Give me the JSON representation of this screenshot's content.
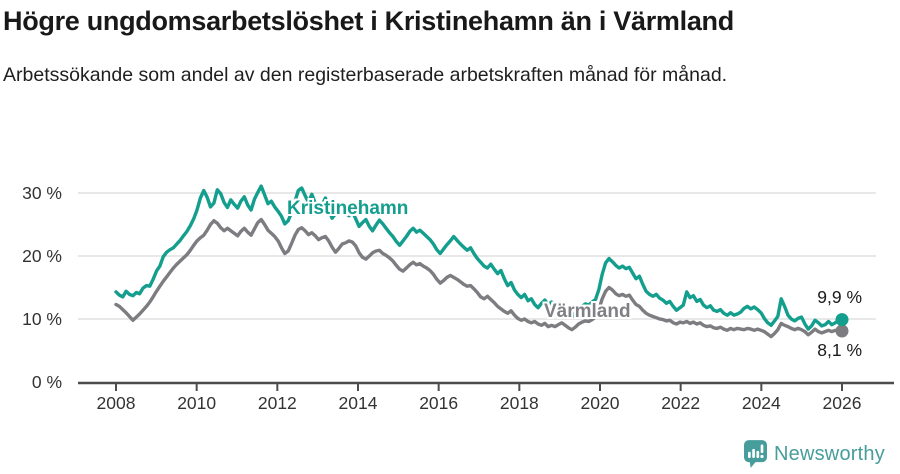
{
  "header": {
    "title": "Högre ungdomsarbetslöshet i Kristinehamn än i Värmland",
    "subtitle": "Arbetssökande som andel av den registerbaserade arbetskraften månad för månad."
  },
  "chart_data": {
    "type": "line",
    "title": "Högre ungdomsarbetslöshet i Kristinehamn än i Värmland",
    "xlabel": "",
    "ylabel": "",
    "x_range": [
      2008,
      2026
    ],
    "ylim": [
      0,
      33
    ],
    "grid": "horizontal",
    "legend_position": "inline-labels",
    "x_tick_years": [
      2008,
      2010,
      2012,
      2014,
      2016,
      2018,
      2020,
      2022,
      2024,
      2026
    ],
    "y_ticks": [
      {
        "value": 0,
        "label": "0 %"
      },
      {
        "value": 10,
        "label": "10 %"
      },
      {
        "value": 20,
        "label": "20 %"
      },
      {
        "value": 30,
        "label": "30 %"
      }
    ],
    "sampling": "monthly 2008-01 to 2025-12",
    "series": [
      {
        "name": "Kristinehamn",
        "color": "#149e8d",
        "end_label": "9,9 %",
        "end_value": 9.9,
        "values": [
          14.3,
          13.8,
          13.5,
          14.4,
          13.9,
          13.7,
          14.2,
          14.0,
          14.9,
          15.3,
          15.2,
          16.3,
          17.6,
          18.4,
          19.9,
          20.6,
          21.0,
          21.3,
          21.9,
          22.5,
          23.2,
          23.9,
          24.8,
          25.9,
          27.3,
          29.2,
          30.4,
          29.3,
          27.8,
          28.4,
          30.5,
          29.9,
          28.5,
          27.7,
          28.9,
          28.2,
          27.6,
          28.7,
          29.4,
          28.1,
          27.3,
          29.0,
          30.1,
          31.1,
          29.7,
          28.3,
          28.7,
          27.8,
          27.1,
          26.3,
          25.1,
          25.6,
          26.9,
          28.7,
          30.4,
          30.8,
          29.6,
          28.5,
          29.8,
          28.4,
          27.0,
          28.1,
          29.2,
          27.4,
          26.0,
          26.7,
          28.1,
          27.6,
          26.8,
          26.4,
          27.1,
          25.9,
          24.7,
          25.3,
          25.8,
          24.7,
          24.0,
          24.9,
          25.7,
          25.1,
          24.4,
          23.7,
          23.1,
          22.3,
          21.7,
          22.4,
          23.1,
          23.9,
          24.4,
          23.8,
          24.1,
          23.6,
          23.1,
          22.6,
          21.9,
          21.0,
          20.4,
          21.1,
          21.8,
          22.4,
          23.1,
          22.5,
          21.9,
          21.4,
          20.9,
          21.3,
          20.4,
          19.6,
          19.0,
          18.4,
          18.1,
          18.7,
          17.9,
          17.2,
          17.7,
          16.4,
          15.3,
          15.8,
          14.6,
          13.9,
          13.4,
          13.9,
          12.9,
          13.2,
          12.3,
          11.8,
          12.5,
          13.0,
          12.3,
          12.7,
          12.0,
          12.4,
          12.5,
          11.9,
          11.1,
          10.3,
          11.0,
          11.7,
          12.0,
          12.4,
          12.2,
          12.7,
          13.1,
          14.7,
          17.1,
          18.9,
          19.6,
          19.1,
          18.5,
          18.1,
          18.4,
          18.0,
          18.2,
          17.3,
          16.4,
          16.8,
          15.5,
          14.4,
          13.9,
          13.6,
          13.9,
          13.3,
          13.0,
          12.5,
          12.8,
          12.0,
          11.4,
          11.8,
          12.2,
          14.3,
          13.4,
          13.7,
          12.8,
          13.1,
          12.2,
          11.8,
          12.1,
          11.4,
          11.2,
          11.5,
          10.9,
          10.6,
          11.0,
          10.6,
          10.8,
          11.1,
          11.7,
          12.0,
          11.6,
          11.9,
          11.5,
          11.0,
          10.1,
          9.4,
          9.0,
          9.7,
          10.4,
          13.2,
          12.0,
          10.6,
          10.0,
          9.7,
          10.1,
          10.3,
          9.2,
          8.4,
          8.9,
          9.8,
          9.4,
          8.9,
          9.1,
          9.6,
          9.1,
          9.4,
          9.8,
          9.9
        ]
      },
      {
        "name": "Värmland",
        "color": "#7d7c80",
        "end_label": "8,1 %",
        "end_value": 8.1,
        "values": [
          12.3,
          12.0,
          11.5,
          11.0,
          10.4,
          9.8,
          10.3,
          10.8,
          11.4,
          12.0,
          12.7,
          13.5,
          14.4,
          15.2,
          16.0,
          16.7,
          17.4,
          18.1,
          18.7,
          19.2,
          19.7,
          20.2,
          20.9,
          21.7,
          22.4,
          22.9,
          23.3,
          24.1,
          25.0,
          25.6,
          25.2,
          24.5,
          24.0,
          24.4,
          24.0,
          23.6,
          23.2,
          23.9,
          24.4,
          23.8,
          23.3,
          24.3,
          25.3,
          25.8,
          25.0,
          24.1,
          23.6,
          23.1,
          22.4,
          21.3,
          20.4,
          20.8,
          22.0,
          23.3,
          24.2,
          24.5,
          24.0,
          23.4,
          23.7,
          23.2,
          22.6,
          22.9,
          23.1,
          22.4,
          21.4,
          20.6,
          21.2,
          21.9,
          22.1,
          22.4,
          22.2,
          21.6,
          20.5,
          19.8,
          19.5,
          20.0,
          20.5,
          20.8,
          20.9,
          20.4,
          20.1,
          19.7,
          19.2,
          18.5,
          17.9,
          17.6,
          18.1,
          18.6,
          19.0,
          18.6,
          18.8,
          18.4,
          18.1,
          17.7,
          17.1,
          16.3,
          15.7,
          16.1,
          16.6,
          16.9,
          16.6,
          16.3,
          15.9,
          15.5,
          15.2,
          15.3,
          14.8,
          14.2,
          13.5,
          13.2,
          13.6,
          13.1,
          12.6,
          12.0,
          11.6,
          11.2,
          10.9,
          11.3,
          10.6,
          10.1,
          9.8,
          10.0,
          9.6,
          9.4,
          9.6,
          9.2,
          9.0,
          9.3,
          8.8,
          9.0,
          8.8,
          9.1,
          9.4,
          9.0,
          8.6,
          8.3,
          8.7,
          9.2,
          9.5,
          9.7,
          9.6,
          9.9,
          10.3,
          11.5,
          13.2,
          14.4,
          15.0,
          14.6,
          14.0,
          13.7,
          13.9,
          13.6,
          13.8,
          13.0,
          12.3,
          12.0,
          11.4,
          10.9,
          10.6,
          10.4,
          10.2,
          10.0,
          9.9,
          9.7,
          9.8,
          9.4,
          9.2,
          9.5,
          9.4,
          9.6,
          9.3,
          9.5,
          9.2,
          9.4,
          9.0,
          8.8,
          8.9,
          8.6,
          8.5,
          8.7,
          8.4,
          8.2,
          8.5,
          8.3,
          8.5,
          8.4,
          8.3,
          8.5,
          8.4,
          8.2,
          8.4,
          8.2,
          8.0,
          7.6,
          7.2,
          7.7,
          8.3,
          9.3,
          9.0,
          8.8,
          8.5,
          8.3,
          8.5,
          8.3,
          8.0,
          7.5,
          7.9,
          8.4,
          8.0,
          7.8,
          8.0,
          8.2,
          8.0,
          8.2,
          8.0,
          8.1
        ]
      }
    ],
    "colors": {
      "kristinehamn": "#149e8d",
      "varmland": "#7d7c80",
      "gridline": "#d9d9d9",
      "axis": "#4c4c4c",
      "text": "#333333"
    }
  },
  "footer": {
    "brand": "Newsworthy"
  }
}
